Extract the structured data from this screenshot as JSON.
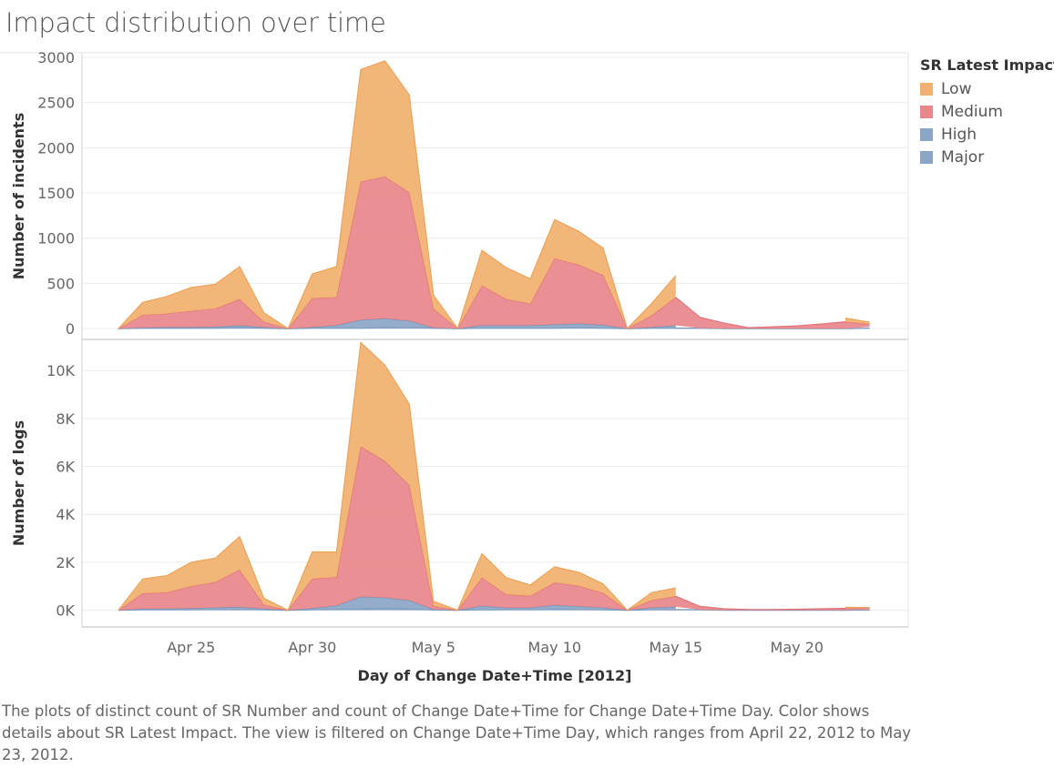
{
  "page": {
    "title": "Impact distribution over time",
    "caption": "The plots of distinct count of SR Number and count of Change Date+Time for Change Date+Time Day.  Color shows details about SR Latest Impact. The view is filtered on Change Date+Time Day, which ranges from April 22, 2012 to May 23, 2012."
  },
  "legend": {
    "title": "SR Latest Impact",
    "items": [
      {
        "label": "Low",
        "color": "#f2b06e"
      },
      {
        "label": "Medium",
        "color": "#e8868a"
      },
      {
        "label": "High",
        "color": "#8aa6c7"
      },
      {
        "label": "Major",
        "color": "#8aa6c7"
      }
    ]
  },
  "chart_data": [
    {
      "type": "area",
      "stacked": true,
      "ylabel": "Number of incidents",
      "ylim": [
        -120,
        3050
      ],
      "yticks": [
        0,
        500,
        1000,
        1500,
        2000,
        2500,
        3000
      ],
      "ytick_labels": [
        "0",
        "500",
        "1000",
        "1500",
        "2000",
        "2500",
        "3000"
      ],
      "grid": true,
      "x": [
        "2012-04-22",
        "2012-04-23",
        "2012-04-24",
        "2012-04-25",
        "2012-04-26",
        "2012-04-27",
        "2012-04-28",
        "2012-04-29",
        "2012-04-30",
        "2012-05-01",
        "2012-05-02",
        "2012-05-03",
        "2012-05-04",
        "2012-05-05",
        "2012-05-06",
        "2012-05-07",
        "2012-05-08",
        "2012-05-09",
        "2012-05-10",
        "2012-05-11",
        "2012-05-12",
        "2012-05-13",
        "2012-05-14",
        "2012-05-15",
        "2012-05-16",
        "2012-05-17",
        "2012-05-18",
        "2012-05-19",
        "2012-05-20",
        "2012-05-21",
        "2012-05-22",
        "2012-05-23"
      ],
      "series": [
        {
          "name": "Major",
          "values": [
            0,
            5,
            5,
            5,
            5,
            10,
            5,
            0,
            5,
            5,
            5,
            10,
            10,
            5,
            0,
            5,
            5,
            5,
            5,
            10,
            5,
            0,
            5,
            5,
            5,
            0,
            0,
            0,
            0,
            0,
            0,
            5
          ]
        },
        {
          "name": "High",
          "values": [
            0,
            5,
            10,
            10,
            15,
            25,
            10,
            0,
            10,
            30,
            90,
            100,
            75,
            5,
            0,
            30,
            30,
            30,
            40,
            45,
            35,
            0,
            10,
            30,
            null,
            null,
            null,
            null,
            null,
            null,
            null,
            15
          ]
        },
        {
          "name": "Medium",
          "values": [
            0,
            140,
            150,
            180,
            200,
            290,
            60,
            0,
            320,
            310,
            1530,
            1570,
            1420,
            210,
            0,
            440,
            290,
            240,
            730,
            650,
            550,
            0,
            130,
            310,
            120,
            60,
            10,
            20,
            30,
            50,
            75,
            30
          ]
        },
        {
          "name": "Low",
          "values": [
            0,
            140,
            190,
            260,
            270,
            360,
            100,
            0,
            270,
            340,
            1240,
            1280,
            1080,
            150,
            0,
            390,
            350,
            275,
            430,
            370,
            300,
            0,
            130,
            240,
            null,
            null,
            null,
            null,
            null,
            null,
            40,
            20
          ]
        }
      ]
    },
    {
      "type": "area",
      "stacked": true,
      "ylabel": "Number of logs",
      "ylim": [
        -700,
        11300
      ],
      "yticks": [
        0,
        2000,
        4000,
        6000,
        8000,
        10000
      ],
      "ytick_labels": [
        "0K",
        "2K",
        "4K",
        "6K",
        "8K",
        "10K"
      ],
      "grid": true,
      "x": [
        "2012-04-22",
        "2012-04-23",
        "2012-04-24",
        "2012-04-25",
        "2012-04-26",
        "2012-04-27",
        "2012-04-28",
        "2012-04-29",
        "2012-04-30",
        "2012-05-01",
        "2012-05-02",
        "2012-05-03",
        "2012-05-04",
        "2012-05-05",
        "2012-05-06",
        "2012-05-07",
        "2012-05-08",
        "2012-05-09",
        "2012-05-10",
        "2012-05-11",
        "2012-05-12",
        "2012-05-13",
        "2012-05-14",
        "2012-05-15",
        "2012-05-16",
        "2012-05-17",
        "2012-05-18",
        "2012-05-19",
        "2012-05-20",
        "2012-05-21",
        "2012-05-22",
        "2012-05-23"
      ],
      "series": [
        {
          "name": "Major",
          "values": [
            0,
            20,
            20,
            20,
            30,
            30,
            20,
            0,
            20,
            40,
            60,
            80,
            60,
            10,
            0,
            20,
            20,
            20,
            40,
            30,
            20,
            0,
            20,
            20,
            20,
            0,
            0,
            0,
            0,
            0,
            0,
            10
          ]
        },
        {
          "name": "High",
          "values": [
            0,
            40,
            40,
            60,
            80,
            100,
            40,
            0,
            60,
            150,
            500,
            440,
            350,
            20,
            0,
            160,
            80,
            80,
            170,
            130,
            90,
            0,
            80,
            120,
            null,
            null,
            null,
            null,
            null,
            null,
            null,
            20
          ]
        },
        {
          "name": "Medium",
          "values": [
            0,
            640,
            680,
            920,
            1060,
            1560,
            160,
            0,
            1230,
            1190,
            6270,
            5700,
            4810,
            140,
            0,
            1180,
            560,
            490,
            940,
            850,
            610,
            0,
            310,
            440,
            140,
            60,
            30,
            30,
            40,
            60,
            80,
            60
          ]
        },
        {
          "name": "Low",
          "values": [
            0,
            600,
            700,
            1000,
            1000,
            1380,
            280,
            0,
            1120,
            1050,
            4350,
            4000,
            3380,
            200,
            0,
            1000,
            700,
            460,
            660,
            570,
            380,
            0,
            320,
            350,
            null,
            null,
            null,
            null,
            null,
            null,
            40,
            20
          ]
        }
      ]
    }
  ],
  "xaxis": {
    "title": "Day of Change Date+Time [2012]",
    "ticks": [
      {
        "date": "2012-04-25",
        "label": "Apr 25"
      },
      {
        "date": "2012-04-30",
        "label": "Apr 30"
      },
      {
        "date": "2012-05-05",
        "label": "May 5"
      },
      {
        "date": "2012-05-10",
        "label": "May 10"
      },
      {
        "date": "2012-05-15",
        "label": "May 15"
      },
      {
        "date": "2012-05-20",
        "label": "May 20"
      }
    ]
  }
}
